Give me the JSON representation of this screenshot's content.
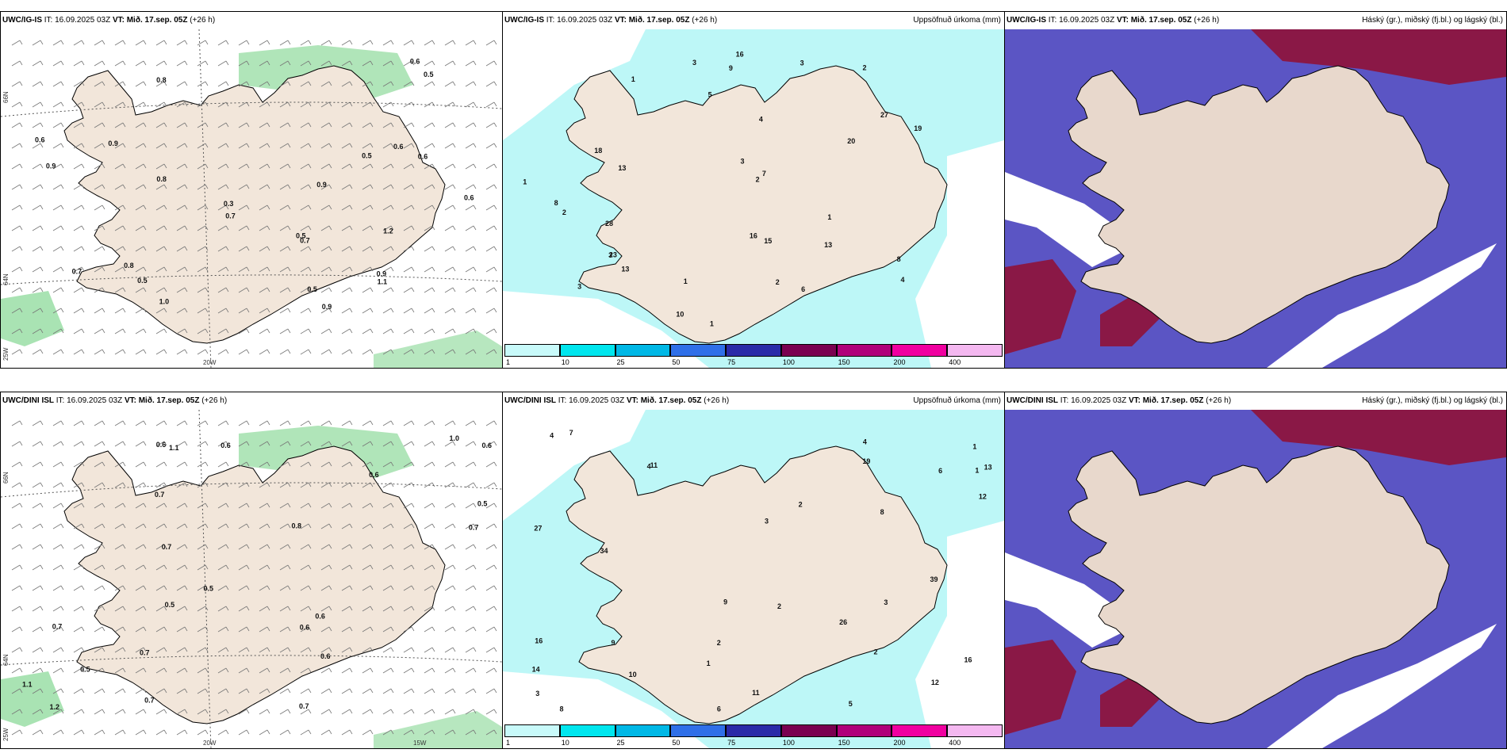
{
  "panels": [
    {
      "id": "tl",
      "model": "UWC/IG-IS",
      "it_label": "IT:",
      "it": "16.09.2025 03Z",
      "vt_label": "VT:",
      "vt": "Mið. 17.sep. 05Z",
      "lead": "(+26 h)",
      "right": "",
      "kind": "wind",
      "lat_labels": [
        "66N",
        "64N",
        "25W"
      ],
      "lon_labels": [
        "20W"
      ],
      "values": [
        "0.9",
        "0.8",
        "0.8",
        "0.9",
        "0.6",
        "0.5",
        "0.6",
        "0.8",
        "0.7",
        "0.5",
        "0.7",
        "0.6",
        "0.3",
        "0.5",
        "0.5",
        "0.6",
        "0.9",
        "0.5",
        "1.2",
        "0.6",
        "0.9",
        "0.7",
        "1.0",
        "1.1",
        "0.9"
      ]
    },
    {
      "id": "tm",
      "model": "UWC/IG-IS",
      "it_label": "IT:",
      "it": "16.09.2025 03Z",
      "vt_label": "VT:",
      "vt": "Mið. 17.sep. 05Z",
      "lead": "(+26 h)",
      "right": "Uppsöfnuð úrkoma (mm)",
      "kind": "precip",
      "values": [
        "3",
        "2",
        "1",
        "27",
        "15",
        "13",
        "28",
        "23",
        "19",
        "20",
        "8",
        "16",
        "13",
        "2",
        "1",
        "3",
        "4",
        "1",
        "3",
        "10",
        "6",
        "9",
        "5",
        "7",
        "3",
        "1",
        "2",
        "3",
        "4",
        "1",
        "18",
        "13",
        "2",
        "16",
        "8"
      ]
    },
    {
      "id": "tr",
      "model": "UWC/IG-IS",
      "it_label": "IT:",
      "it": "16.09.2025 03Z",
      "vt_label": "VT:",
      "vt": "Mið. 17.sep. 05Z",
      "lead": "(+26 h)",
      "right": "Háský (gr.), miðský (fj.bl.) og lágský (bl.)",
      "kind": "cloud",
      "values": []
    },
    {
      "id": "bl",
      "model": "UWC/DINI ISL",
      "it_label": "IT:",
      "it": "16.09.2025 03Z",
      "vt_label": "VT:",
      "vt": "Mið. 17.sep. 05Z",
      "lead": "(+26 h)",
      "right": "",
      "kind": "wind",
      "lat_labels": [
        "66N",
        "64N",
        "25W"
      ],
      "lon_labels": [
        "20W",
        "15W"
      ],
      "values": [
        "0.7",
        "0.7",
        "0.7",
        "1.0",
        "0.7",
        "0.5",
        "0.6",
        "0.5",
        "0.6",
        "0.8",
        "0.6",
        "0.7",
        "1.2",
        "1.1",
        "0.6",
        "0.6",
        "0.5",
        "0.7",
        "1.1",
        "0.6",
        "0.7",
        "0.5",
        "0.6"
      ]
    },
    {
      "id": "bm",
      "model": "UWC/DINI ISL",
      "it_label": "IT:",
      "it": "16.09.2025 03Z",
      "vt_label": "VT:",
      "vt": "Mið. 17.sep. 05Z",
      "lead": "(+26 h)",
      "right": "Uppsöfnuð úrkoma (mm)",
      "kind": "precip",
      "values": [
        "2",
        "3",
        "4",
        "11",
        "26",
        "13",
        "12",
        "39",
        "27",
        "14",
        "16",
        "19",
        "11",
        "10",
        "2",
        "1",
        "4",
        "9",
        "6",
        "3",
        "7",
        "12",
        "5",
        "8",
        "1",
        "34",
        "2",
        "4",
        "3",
        "1",
        "2",
        "8",
        "16",
        "6",
        "9"
      ]
    },
    {
      "id": "br",
      "model": "UWC/DINI ISL",
      "it_label": "IT:",
      "it": "16.09.2025 03Z",
      "vt_label": "VT:",
      "vt": "Mið. 17.sep. 05Z",
      "lead": "(+26 h)",
      "right": "Háský (gr.), miðský (fj.bl.) og lágský (bl.)",
      "kind": "cloud",
      "values": []
    }
  ],
  "colorbar": {
    "ticks": [
      "1",
      "10",
      "25",
      "50",
      "75",
      "100",
      "150",
      "200",
      "400"
    ],
    "colors": [
      "#c8fafa",
      "#00e6ee",
      "#00b8e6",
      "#2f6fe8",
      "#2a2aa8",
      "#7a0050",
      "#b0007a",
      "#f000a0",
      "#f4b8f0"
    ]
  },
  "colors": {
    "land": "#f2e6da",
    "wind_bg": "#ffffff",
    "precip_bg": "#bdf7f7",
    "cloud_bg": "#5b55c4",
    "high_cloud": "#8a1846",
    "green": "#6fd080"
  }
}
